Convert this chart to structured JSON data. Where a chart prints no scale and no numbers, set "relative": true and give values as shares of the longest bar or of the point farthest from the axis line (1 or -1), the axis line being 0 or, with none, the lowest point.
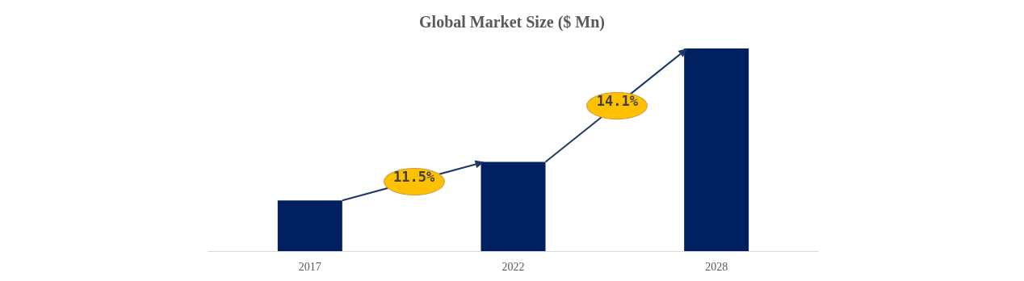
{
  "chart_data": {
    "type": "bar",
    "title": "Global Market Size ($ Mn)",
    "categories": [
      "2017",
      "2022",
      "2028"
    ],
    "relative": true,
    "values": [
      0.25,
      0.44,
      1
    ],
    "color": "#002060",
    "annotations": [
      "11.5%",
      "14.1%"
    ]
  }
}
